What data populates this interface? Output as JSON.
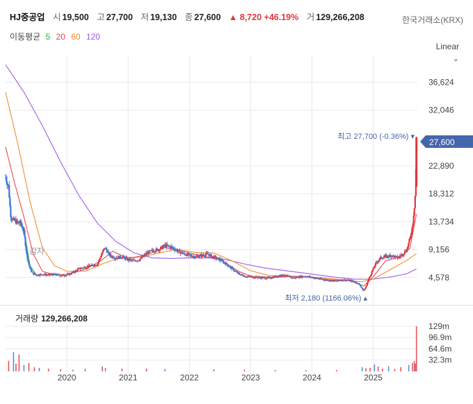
{
  "header": {
    "name": "HJ중공업",
    "open_label": "시",
    "open": "19,500",
    "high_label": "고",
    "high": "27,700",
    "low_label": "저",
    "low": "19,130",
    "close_label": "종",
    "close": "27,600",
    "change": "▲ 8,720",
    "change_pct": "+46.19%",
    "volume_label": "거",
    "volume": "129,266,208",
    "exchange": "한국거래소(KRX)"
  },
  "ma": {
    "title": "이동평균",
    "periods": [
      {
        "label": "5",
        "color": "#2eaa3a"
      },
      {
        "label": "20",
        "color": "#e64646"
      },
      {
        "label": "60",
        "color": "#f08c2d"
      },
      {
        "label": "120",
        "color": "#9b59e6"
      }
    ]
  },
  "scale_button": {
    "label": "Linear",
    "icon": "chevron-down-icon"
  },
  "colors": {
    "up": "#e0363c",
    "down": "#3a7bd5",
    "grid": "#e9e9e9",
    "badge": "#4466aa"
  },
  "annotations": {
    "high": "최고 27,700 (-0.36%) ▾",
    "low": "최저 2,180 (1166.06%) ▴",
    "reduction": "감자",
    "last_price": "27,600"
  },
  "chart_data": {
    "type": "candlestick",
    "price_axis_ticks": [
      "36,624",
      "32,046",
      "22,890",
      "18,312",
      "13,734",
      "9,156",
      "4,578"
    ],
    "volume_axis_ticks": [
      "129m",
      "96.9m",
      "64.6m",
      "32.3m"
    ],
    "x_ticks": [
      "2020",
      "2021",
      "2022",
      "2023",
      "2024",
      "2025"
    ],
    "volume_title": "거래량",
    "volume_value": "129,266,208",
    "ylim": [
      0,
      41000
    ],
    "x_range": [
      2019.0,
      2025.72
    ],
    "close_path": [
      [
        2019.0,
        21000
      ],
      [
        2019.05,
        19500
      ],
      [
        2019.08,
        15000
      ],
      [
        2019.12,
        14000
      ],
      [
        2019.18,
        13700
      ],
      [
        2019.25,
        13500
      ],
      [
        2019.3,
        12000
      ],
      [
        2019.35,
        8000
      ],
      [
        2019.4,
        6000
      ],
      [
        2019.45,
        5200
      ],
      [
        2019.5,
        5000
      ],
      [
        2019.6,
        5100
      ],
      [
        2019.7,
        5000
      ],
      [
        2019.8,
        5100
      ],
      [
        2019.9,
        4900
      ],
      [
        2020.0,
        5000
      ],
      [
        2020.1,
        5400
      ],
      [
        2020.2,
        6000
      ],
      [
        2020.3,
        6300
      ],
      [
        2020.4,
        6500
      ],
      [
        2020.5,
        6800
      ],
      [
        2020.55,
        8000
      ],
      [
        2020.62,
        9500
      ],
      [
        2020.7,
        8200
      ],
      [
        2020.8,
        7800
      ],
      [
        2020.9,
        8000
      ],
      [
        2021.0,
        7500
      ],
      [
        2021.1,
        7300
      ],
      [
        2021.2,
        7600
      ],
      [
        2021.3,
        8500
      ],
      [
        2021.4,
        9000
      ],
      [
        2021.5,
        9200
      ],
      [
        2021.6,
        9800
      ],
      [
        2021.7,
        9600
      ],
      [
        2021.8,
        9000
      ],
      [
        2021.9,
        8500
      ],
      [
        2022.0,
        8200
      ],
      [
        2022.1,
        8000
      ],
      [
        2022.2,
        8200
      ],
      [
        2022.3,
        8400
      ],
      [
        2022.4,
        7900
      ],
      [
        2022.5,
        7500
      ],
      [
        2022.6,
        6800
      ],
      [
        2022.7,
        6000
      ],
      [
        2022.8,
        5200
      ],
      [
        2022.9,
        4800
      ],
      [
        2023.0,
        4700
      ],
      [
        2023.1,
        4600
      ],
      [
        2023.2,
        4500
      ],
      [
        2023.3,
        4500
      ],
      [
        2023.4,
        4700
      ],
      [
        2023.5,
        5000
      ],
      [
        2023.6,
        4800
      ],
      [
        2023.7,
        4500
      ],
      [
        2023.8,
        4700
      ],
      [
        2023.9,
        4800
      ],
      [
        2024.0,
        4600
      ],
      [
        2024.1,
        4400
      ],
      [
        2024.2,
        4200
      ],
      [
        2024.3,
        4100
      ],
      [
        2024.4,
        4000
      ],
      [
        2024.5,
        4200
      ],
      [
        2024.6,
        4100
      ],
      [
        2024.7,
        3900
      ],
      [
        2024.78,
        3400
      ],
      [
        2024.84,
        2400
      ],
      [
        2024.88,
        3000
      ],
      [
        2024.92,
        4200
      ],
      [
        2025.0,
        6000
      ],
      [
        2025.05,
        7000
      ],
      [
        2025.12,
        7800
      ],
      [
        2025.2,
        8000
      ],
      [
        2025.3,
        8200
      ],
      [
        2025.4,
        7800
      ],
      [
        2025.48,
        8400
      ],
      [
        2025.55,
        9200
      ],
      [
        2025.6,
        11000
      ],
      [
        2025.64,
        13000
      ],
      [
        2025.67,
        16000
      ],
      [
        2025.69,
        18900
      ],
      [
        2025.705,
        27600
      ]
    ],
    "ma120": [
      [
        2019.0,
        39500
      ],
      [
        2019.3,
        35000
      ],
      [
        2019.6,
        29500
      ],
      [
        2019.9,
        23500
      ],
      [
        2020.2,
        18000
      ],
      [
        2020.5,
        13500
      ],
      [
        2020.8,
        10500
      ],
      [
        2021.1,
        8600
      ],
      [
        2021.4,
        7800
      ],
      [
        2021.7,
        7700
      ],
      [
        2022.0,
        7800
      ],
      [
        2022.3,
        7800
      ],
      [
        2022.6,
        7500
      ],
      [
        2022.9,
        6800
      ],
      [
        2023.2,
        6200
      ],
      [
        2023.5,
        5800
      ],
      [
        2023.8,
        5400
      ],
      [
        2024.1,
        5000
      ],
      [
        2024.4,
        4600
      ],
      [
        2024.7,
        4300
      ],
      [
        2025.0,
        4300
      ],
      [
        2025.3,
        4700
      ],
      [
        2025.55,
        5200
      ],
      [
        2025.705,
        6000
      ]
    ],
    "ma60": [
      [
        2019.0,
        35000
      ],
      [
        2019.2,
        26500
      ],
      [
        2019.4,
        17000
      ],
      [
        2019.6,
        9500
      ],
      [
        2019.8,
        6500
      ],
      [
        2020.0,
        5600
      ],
      [
        2020.3,
        5600
      ],
      [
        2020.6,
        6900
      ],
      [
        2020.9,
        7900
      ],
      [
        2021.2,
        7900
      ],
      [
        2021.5,
        8600
      ],
      [
        2021.8,
        9200
      ],
      [
        2022.1,
        8700
      ],
      [
        2022.4,
        8600
      ],
      [
        2022.7,
        7300
      ],
      [
        2023.0,
        5700
      ],
      [
        2023.3,
        4900
      ],
      [
        2023.6,
        4800
      ],
      [
        2023.9,
        4700
      ],
      [
        2024.2,
        4500
      ],
      [
        2024.5,
        4200
      ],
      [
        2024.8,
        3900
      ],
      [
        2025.0,
        4300
      ],
      [
        2025.3,
        6000
      ],
      [
        2025.55,
        7400
      ],
      [
        2025.705,
        8500
      ]
    ],
    "ma20": [
      [
        2019.0,
        26000
      ],
      [
        2019.15,
        20000
      ],
      [
        2019.3,
        14500
      ],
      [
        2019.45,
        8500
      ],
      [
        2019.6,
        5600
      ],
      [
        2019.8,
        5000
      ],
      [
        2020.0,
        5100
      ],
      [
        2020.3,
        5900
      ],
      [
        2020.55,
        7300
      ],
      [
        2020.75,
        8900
      ],
      [
        2021.0,
        7700
      ],
      [
        2021.3,
        8300
      ],
      [
        2021.6,
        9500
      ],
      [
        2021.9,
        8900
      ],
      [
        2022.2,
        8100
      ],
      [
        2022.5,
        7600
      ],
      [
        2022.8,
        5600
      ],
      [
        2023.0,
        4800
      ],
      [
        2023.4,
        4600
      ],
      [
        2023.7,
        4800
      ],
      [
        2024.0,
        4600
      ],
      [
        2024.3,
        4200
      ],
      [
        2024.6,
        4100
      ],
      [
        2024.85,
        3200
      ],
      [
        2025.0,
        4700
      ],
      [
        2025.2,
        7300
      ],
      [
        2025.45,
        8000
      ],
      [
        2025.6,
        9400
      ],
      [
        2025.705,
        15000
      ]
    ],
    "ma5": [
      [
        2019.18,
        13700
      ],
      [
        2019.3,
        12500
      ],
      [
        2019.4,
        6500
      ],
      [
        2019.5,
        5100
      ]
    ],
    "volume_bars": [
      [
        2019.05,
        30
      ],
      [
        2019.13,
        55
      ],
      [
        2019.17,
        22
      ],
      [
        2019.22,
        48
      ],
      [
        2019.3,
        18
      ],
      [
        2019.38,
        24
      ],
      [
        2019.47,
        12
      ],
      [
        2019.55,
        10
      ],
      [
        2019.7,
        8
      ],
      [
        2019.9,
        6
      ],
      [
        2020.1,
        5
      ],
      [
        2020.3,
        7
      ],
      [
        2020.58,
        14
      ],
      [
        2020.63,
        10
      ],
      [
        2020.9,
        8
      ],
      [
        2021.3,
        8
      ],
      [
        2021.6,
        7
      ],
      [
        2022.4,
        6
      ],
      [
        2022.9,
        5
      ],
      [
        2023.4,
        4
      ],
      [
        2023.9,
        4
      ],
      [
        2024.4,
        4
      ],
      [
        2024.82,
        12
      ],
      [
        2024.88,
        9
      ],
      [
        2024.95,
        10
      ],
      [
        2025.02,
        20
      ],
      [
        2025.08,
        14
      ],
      [
        2025.15,
        8
      ],
      [
        2025.25,
        15
      ],
      [
        2025.35,
        7
      ],
      [
        2025.45,
        12
      ],
      [
        2025.58,
        18
      ],
      [
        2025.64,
        24
      ],
      [
        2025.67,
        30
      ],
      [
        2025.69,
        22
      ],
      [
        2025.705,
        129
      ]
    ]
  }
}
